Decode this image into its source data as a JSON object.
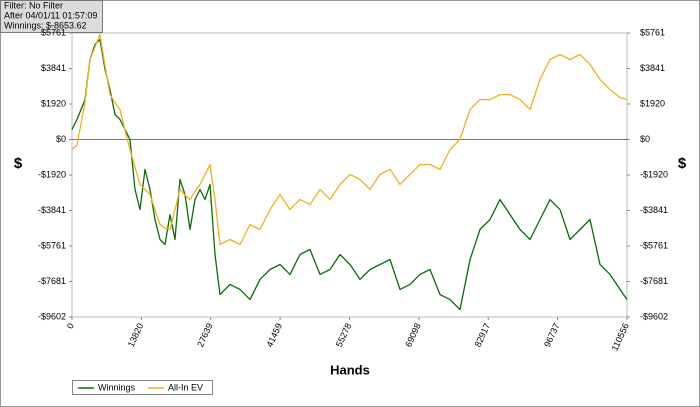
{
  "chart_data": {
    "type": "line",
    "info": [
      "Filter: No Filter",
      "After 04/01/11 01:57:09",
      "Winnings: $-8653.62"
    ],
    "xlabel": "Hands",
    "ylabel": "$",
    "y2label": "$",
    "x": [
      0,
      996,
      2590,
      3586,
      4582,
      5578,
      6574,
      7570,
      8566,
      9562,
      10558,
      11554,
      12550,
      13546,
      14542,
      15538,
      16534,
      17530,
      18526,
      19522,
      20518,
      21514,
      22510,
      23506,
      24502,
      25498,
      26494,
      27490,
      28486,
      29482,
      31474,
      33466,
      35458,
      37450,
      39442,
      41434,
      43426,
      45418,
      47410,
      49402,
      51394,
      53386,
      55378,
      57370,
      59362,
      61354,
      63346,
      65338,
      67330,
      69322,
      71314,
      73306,
      75298,
      77290,
      79282,
      81274,
      83266,
      85258,
      87250,
      89242,
      91234,
      93226,
      95218,
      97210,
      99202,
      101194,
      103186,
      105178,
      107170,
      109162,
      110556
    ],
    "series": [
      {
        "name": "Winnings",
        "color": "#0b6b0b",
        "values": [
          540,
          1080,
          2160,
          4330,
          5140,
          5410,
          3790,
          2700,
          1350,
          1080,
          540,
          0,
          -2700,
          -3790,
          -1620,
          -2700,
          -4330,
          -5410,
          -5680,
          -4060,
          -5410,
          -2160,
          -2980,
          -4870,
          -3250,
          -2700,
          -3250,
          -2430,
          -6220,
          -8390,
          -7840,
          -8110,
          -8660,
          -7570,
          -7030,
          -6760,
          -7300,
          -6220,
          -5950,
          -7300,
          -7030,
          -6220,
          -6760,
          -7570,
          -7030,
          -6760,
          -6490,
          -8110,
          -7840,
          -7300,
          -7030,
          -8390,
          -8660,
          -9200,
          -6500,
          -4870,
          -4330,
          -3250,
          -4060,
          -4870,
          -5410,
          -4330,
          -3250,
          -3790,
          -5410,
          -4870,
          -4330,
          -6760,
          -7300,
          -8110,
          -8654
        ]
      },
      {
        "name": "All-In EV",
        "color": "#f0b020",
        "values": [
          -540,
          -300,
          2000,
          4330,
          5000,
          5680,
          4000,
          2430,
          2000,
          1620,
          500,
          -540,
          -1500,
          -2430,
          -2700,
          -2980,
          -3800,
          -4600,
          -4800,
          -4870,
          -3800,
          -2700,
          -3000,
          -3250,
          -2800,
          -2430,
          -1900,
          -1350,
          -3250,
          -5680,
          -5410,
          -5680,
          -4600,
          -4870,
          -3790,
          -2980,
          -3790,
          -3250,
          -3520,
          -2700,
          -3250,
          -2430,
          -1890,
          -2160,
          -2700,
          -1890,
          -1620,
          -2430,
          -1890,
          -1350,
          -1350,
          -1620,
          -540,
          0,
          1620,
          2160,
          2160,
          2430,
          2430,
          2160,
          1620,
          3250,
          4330,
          4600,
          4330,
          4600,
          4060,
          3250,
          2700,
          2270,
          2160
        ]
      }
    ],
    "xlim": [
      0,
      110556
    ],
    "xticks": [
      0,
      13820,
      27639,
      41459,
      55278,
      69098,
      82917,
      96737,
      110556
    ],
    "ylim": [
      -9602,
      5761
    ],
    "yticks": [
      {
        "value": -9602,
        "label": "-$9602"
      },
      {
        "value": -7681,
        "label": "-$7681"
      },
      {
        "value": -5761,
        "label": "-$5761"
      },
      {
        "value": -3841,
        "label": "-$3841"
      },
      {
        "value": -1920,
        "label": "-$1920"
      },
      {
        "value": 0,
        "label": "$0"
      },
      {
        "value": 1920,
        "label": "$1920"
      },
      {
        "value": 3841,
        "label": "$3841"
      },
      {
        "value": 5761,
        "label": "$5761"
      }
    ],
    "zero_line": true
  }
}
